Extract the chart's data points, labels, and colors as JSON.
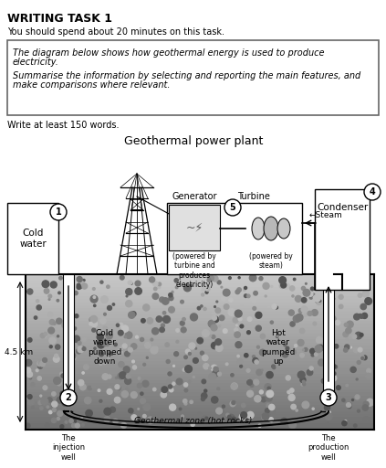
{
  "title_main": "WRITING TASK 1",
  "subtitle": "You should spend about 20 minutes on this task.",
  "box_lines": [
    "The diagram below shows how geothermal energy is used to produce",
    "electricity.",
    "",
    "Summarise the information by selecting and reporting the main features, and",
    "make comparisons where relevant."
  ],
  "write_text": "Write at least 150 words.",
  "diagram_title": "Geothermal power plant",
  "bg_color": "#ffffff",
  "labels": {
    "cold_water": "Cold\nwater",
    "injection_well": "The\ninjection\nwell",
    "production_well": "The\nproduction\nwell",
    "cold_water_down": "Cold\nwater\npumped\ndown",
    "hot_water_up": "Hot\nwater\npumped\nup",
    "geothermal_zone": "Geothermal zone (hot rocks)",
    "generator": "Generator",
    "turbine": "Turbine",
    "condenser": "Condenser",
    "steam": "←Steam",
    "powered_generator": "(powered by\nturbine and\nproduces\nelectricity)",
    "powered_turbine": "(powered by\nsteam)",
    "depth": "4.5 km",
    "num1": "1",
    "num2": "2",
    "num3": "3",
    "num4": "4",
    "num5": "5"
  }
}
